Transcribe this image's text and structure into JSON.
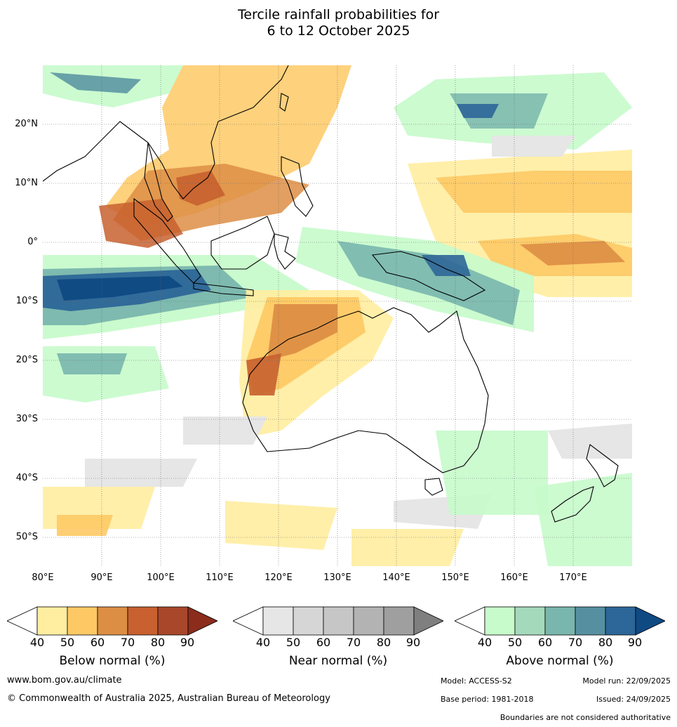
{
  "title_line1": "Tercile rainfall probabilities for",
  "title_line2": "6 to 12 October 2025",
  "lat_labels": [
    "20°N",
    "10°N",
    "0°",
    "10°S",
    "20°S",
    "30°S",
    "40°S",
    "50°S"
  ],
  "lon_labels": [
    "80°E",
    "90°E",
    "100°E",
    "110°E",
    "120°E",
    "130°E",
    "140°E",
    "150°E",
    "160°E",
    "170°E"
  ],
  "legends": [
    {
      "title": "Below normal (%)",
      "ticks": [
        "40",
        "50",
        "60",
        "70",
        "80",
        "90"
      ],
      "colors": [
        "#ffffff",
        "#ffeda0",
        "#fec965",
        "#dd8e45",
        "#c8602f",
        "#a8472a",
        "#8b2c1c"
      ]
    },
    {
      "title": "Near normal (%)",
      "ticks": [
        "40",
        "50",
        "60",
        "70",
        "80",
        "90"
      ],
      "colors": [
        "#ffffff",
        "#e6e6e6",
        "#d6d6d6",
        "#c6c6c6",
        "#b3b3b3",
        "#9f9f9f",
        "#7f7f7f"
      ]
    },
    {
      "title": "Above normal (%)",
      "ticks": [
        "40",
        "50",
        "60",
        "70",
        "80",
        "90"
      ],
      "colors": [
        "#ffffff",
        "#c7fbcb",
        "#a5d9bb",
        "#79b6ad",
        "#5690a0",
        "#2d6698",
        "#104a83"
      ]
    }
  ],
  "footer": {
    "website": "www.bom.gov.au/climate",
    "copyright": "© Commonwealth of Australia 2025, Australian Bureau of Meteorology",
    "model": "Model: ACCESS-S2",
    "model_run": "Model run: 22/09/2025",
    "base_period": "Base period: 1981-2018",
    "issued": "Issued: 24/09/2025",
    "disclaimer": "Boundaries are not considered authoritative"
  }
}
